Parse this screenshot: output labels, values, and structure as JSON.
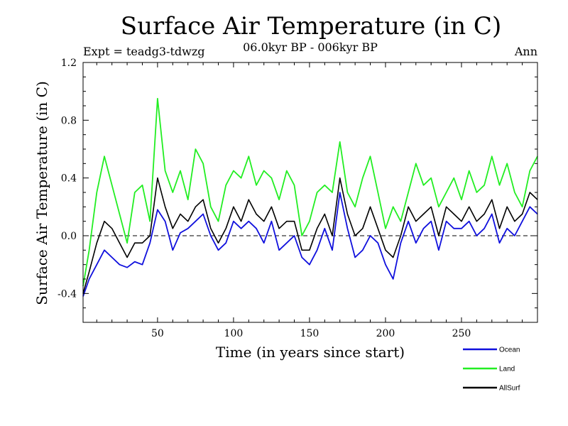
{
  "chart_data": {
    "type": "line",
    "title": "Surface Air Temperature (in C)",
    "subtitle_left": "Expt = teadg3-tdwzg",
    "subtitle_center": "06.0kyr BP - 006kyr BP",
    "subtitle_right": "Ann",
    "xlabel": "Time (in years since start)",
    "ylabel": "Surface Air Temperature (in C)",
    "xlim": [
      1,
      300
    ],
    "ylim": [
      -0.6,
      1.2
    ],
    "xticks": [
      50,
      100,
      150,
      200,
      250
    ],
    "yticks": [
      -0.4,
      0.0,
      0.4,
      0.8,
      1.2
    ],
    "ytick_labels": [
      "-0.4",
      "0.0",
      "0.4",
      "0.8",
      "1.2"
    ],
    "reference_line": 0.0,
    "legend_position": "bottom-right",
    "series": [
      {
        "name": "Ocean",
        "color": "#1010dd",
        "x": [
          1,
          5,
          10,
          15,
          20,
          25,
          30,
          35,
          40,
          45,
          50,
          55,
          60,
          65,
          70,
          75,
          80,
          85,
          90,
          95,
          100,
          105,
          110,
          115,
          120,
          125,
          130,
          135,
          140,
          145,
          150,
          155,
          160,
          165,
          170,
          175,
          180,
          185,
          190,
          195,
          200,
          205,
          210,
          215,
          220,
          225,
          230,
          235,
          240,
          245,
          250,
          255,
          260,
          265,
          270,
          275,
          280,
          285,
          290,
          295,
          300
        ],
        "values": [
          -0.42,
          -0.3,
          -0.2,
          -0.1,
          -0.15,
          -0.2,
          -0.22,
          -0.18,
          -0.2,
          -0.05,
          0.18,
          0.1,
          -0.1,
          0.02,
          0.05,
          0.1,
          0.15,
          0.0,
          -0.1,
          -0.05,
          0.1,
          0.05,
          0.1,
          0.05,
          -0.05,
          0.1,
          -0.1,
          -0.05,
          0.0,
          -0.15,
          -0.2,
          -0.1,
          0.05,
          -0.1,
          0.3,
          0.05,
          -0.15,
          -0.1,
          0.0,
          -0.05,
          -0.2,
          -0.3,
          -0.05,
          0.1,
          -0.05,
          0.05,
          0.1,
          -0.1,
          0.1,
          0.05,
          0.05,
          0.1,
          0.0,
          0.05,
          0.15,
          -0.05,
          0.05,
          0.0,
          0.1,
          0.2,
          0.15
        ]
      },
      {
        "name": "Land",
        "color": "#22ee22",
        "x": [
          1,
          5,
          10,
          15,
          20,
          25,
          30,
          35,
          40,
          45,
          50,
          55,
          60,
          65,
          70,
          75,
          80,
          85,
          90,
          95,
          100,
          105,
          110,
          115,
          120,
          125,
          130,
          135,
          140,
          145,
          150,
          155,
          160,
          165,
          170,
          175,
          180,
          185,
          190,
          195,
          200,
          205,
          210,
          215,
          220,
          225,
          230,
          235,
          240,
          245,
          250,
          255,
          260,
          265,
          270,
          275,
          280,
          285,
          290,
          295,
          300
        ],
        "values": [
          -0.35,
          -0.1,
          0.3,
          0.55,
          0.35,
          0.15,
          -0.05,
          0.3,
          0.35,
          0.1,
          0.95,
          0.45,
          0.3,
          0.45,
          0.25,
          0.6,
          0.5,
          0.2,
          0.1,
          0.35,
          0.45,
          0.4,
          0.55,
          0.35,
          0.45,
          0.4,
          0.25,
          0.45,
          0.35,
          0.0,
          0.1,
          0.3,
          0.35,
          0.3,
          0.65,
          0.3,
          0.2,
          0.4,
          0.55,
          0.3,
          0.05,
          0.2,
          0.1,
          0.3,
          0.5,
          0.35,
          0.4,
          0.2,
          0.3,
          0.4,
          0.25,
          0.45,
          0.3,
          0.35,
          0.55,
          0.35,
          0.5,
          0.3,
          0.2,
          0.45,
          0.55
        ]
      },
      {
        "name": "AllSurf",
        "color": "#000000",
        "x": [
          1,
          5,
          10,
          15,
          20,
          25,
          30,
          35,
          40,
          45,
          50,
          55,
          60,
          65,
          70,
          75,
          80,
          85,
          90,
          95,
          100,
          105,
          110,
          115,
          120,
          125,
          130,
          135,
          140,
          145,
          150,
          155,
          160,
          165,
          170,
          175,
          180,
          185,
          190,
          195,
          200,
          205,
          210,
          215,
          220,
          225,
          230,
          235,
          240,
          245,
          250,
          255,
          260,
          265,
          270,
          275,
          280,
          285,
          290,
          295,
          300
        ],
        "values": [
          -0.4,
          -0.25,
          -0.05,
          0.1,
          0.05,
          -0.05,
          -0.15,
          -0.05,
          -0.05,
          0.0,
          0.4,
          0.2,
          0.05,
          0.15,
          0.1,
          0.2,
          0.25,
          0.05,
          -0.05,
          0.05,
          0.2,
          0.1,
          0.25,
          0.15,
          0.1,
          0.2,
          0.05,
          0.1,
          0.1,
          -0.1,
          -0.1,
          0.05,
          0.15,
          0.0,
          0.4,
          0.15,
          0.0,
          0.05,
          0.2,
          0.05,
          -0.1,
          -0.15,
          0.0,
          0.2,
          0.1,
          0.15,
          0.2,
          0.0,
          0.2,
          0.15,
          0.1,
          0.2,
          0.1,
          0.15,
          0.25,
          0.05,
          0.2,
          0.1,
          0.15,
          0.3,
          0.25
        ]
      }
    ]
  }
}
